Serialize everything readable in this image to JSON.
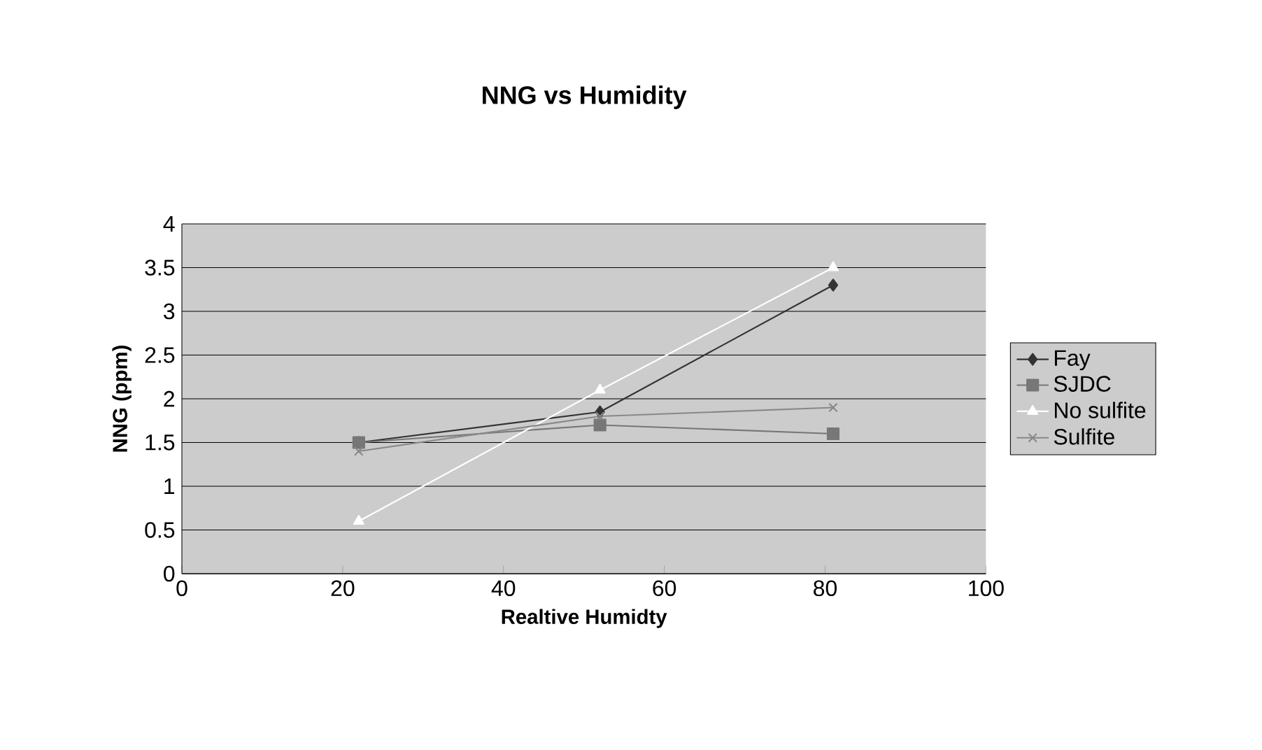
{
  "chart_data": {
    "type": "line",
    "title": "NNG vs Humidity",
    "xlabel": "Realtive Humidty",
    "ylabel": "NNG (ppm)",
    "xlim": [
      0,
      100
    ],
    "xticks": [
      0,
      20,
      40,
      60,
      80,
      100
    ],
    "ylim": [
      0,
      4
    ],
    "yticks": [
      0,
      0.5,
      1,
      1.5,
      2,
      2.5,
      3,
      3.5,
      4
    ],
    "grid": "y",
    "legend": "right",
    "series": [
      {
        "name": "Fay",
        "color": "#333333",
        "marker": "diamond",
        "x": [
          22,
          52,
          81
        ],
        "values": [
          1.5,
          1.85,
          3.3
        ]
      },
      {
        "name": "SJDC",
        "color": "#777777",
        "marker": "square",
        "x": [
          22,
          52,
          81
        ],
        "values": [
          1.5,
          1.7,
          1.6
        ]
      },
      {
        "name": "No sulfite",
        "color": "#ffffff",
        "marker": "triangle",
        "x": [
          22,
          52,
          81
        ],
        "values": [
          0.6,
          2.1,
          3.5
        ]
      },
      {
        "name": "Sulfite",
        "color": "#888888",
        "marker": "cross",
        "x": [
          22,
          52,
          81
        ],
        "values": [
          1.4,
          1.8,
          1.9
        ]
      }
    ]
  }
}
